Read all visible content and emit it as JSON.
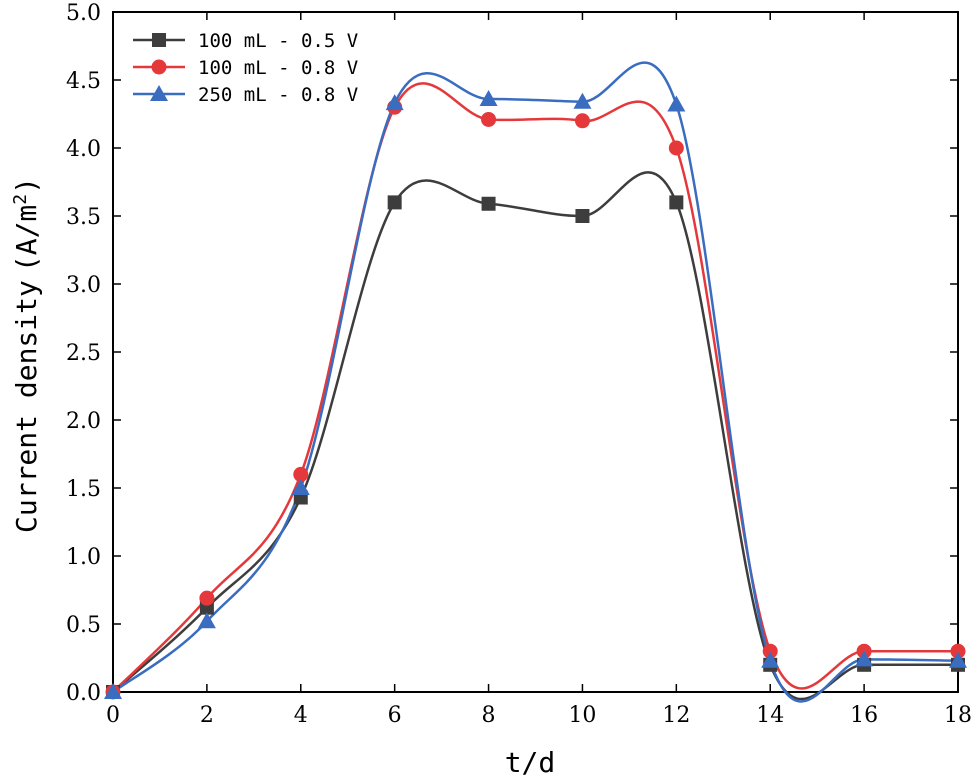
{
  "chart_data": {
    "type": "line",
    "title": "",
    "xlabel": "t/d",
    "ylabel": "Current density",
    "ylabel_unit": "(A/m",
    "ylabel_unit_sup": "2",
    "ylabel_unit_close": ")",
    "xlim": [
      0,
      18
    ],
    "ylim": [
      0,
      5
    ],
    "xticks": [
      0,
      2,
      4,
      6,
      8,
      10,
      12,
      14,
      16,
      18
    ],
    "yticks": [
      0,
      0.5,
      1,
      1.5,
      2,
      2.5,
      3,
      3.5,
      4,
      4.5,
      5
    ],
    "xtick_labels": [
      "0",
      "2",
      "4",
      "6",
      "8",
      "10",
      "12",
      "14",
      "16",
      "18"
    ],
    "ytick_labels": [
      "0.0",
      "0.5",
      "1.0",
      "1.5",
      "2.0",
      "2.5",
      "3.0",
      "3.5",
      "4.0",
      "4.5",
      "5.0"
    ],
    "grid": false,
    "legend_position": "top-left",
    "x": [
      0,
      2,
      4,
      6,
      8,
      10,
      12,
      14,
      16,
      18
    ],
    "series": [
      {
        "name": "100 mL - 0.5 V",
        "color": "#3d3d3d",
        "marker": "square",
        "values": [
          0.0,
          0.62,
          1.43,
          3.6,
          3.59,
          3.5,
          3.6,
          0.2,
          0.2,
          0.2
        ]
      },
      {
        "name": "100 mL - 0.8 V",
        "color": "#e5383b",
        "marker": "circle",
        "values": [
          0.0,
          0.69,
          1.6,
          4.3,
          4.21,
          4.2,
          4.0,
          0.3,
          0.3,
          0.3
        ]
      },
      {
        "name": "250 mL - 0.8 V",
        "color": "#3a6cc0",
        "marker": "triangle",
        "values": [
          0.0,
          0.52,
          1.5,
          4.33,
          4.36,
          4.34,
          4.32,
          0.23,
          0.24,
          0.23
        ]
      }
    ]
  }
}
